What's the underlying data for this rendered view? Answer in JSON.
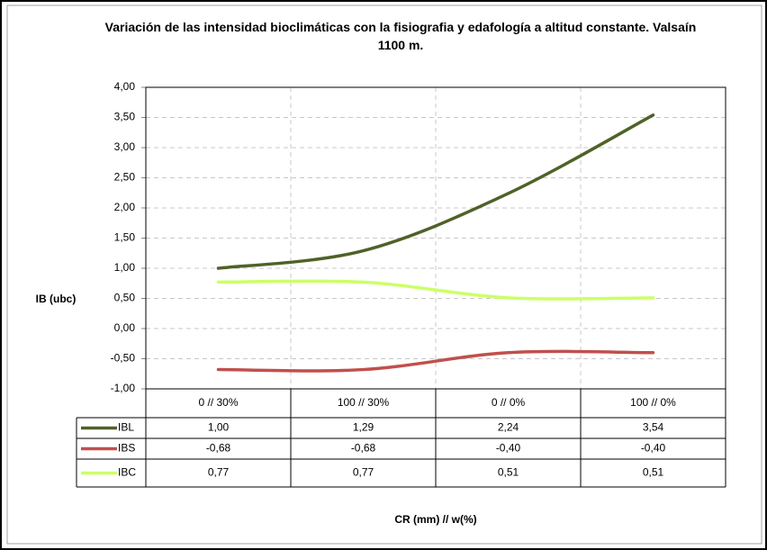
{
  "chart_data": {
    "type": "line",
    "title": "Variación de las intensidad bioclimáticas con la fisiografia y edafología a altitud constante. Valsaín 1100 m.",
    "y_label": "IB (ubc)",
    "x_label": "CR (mm) // w(%)",
    "categories": [
      "0 // 30%",
      "100 // 30%",
      "0 // 0%",
      "100 // 0%"
    ],
    "series": [
      {
        "name": "IBL",
        "color": "#4f6228",
        "values": [
          1.0,
          1.29,
          2.24,
          3.54
        ],
        "value_labels": [
          "1,00",
          "1,29",
          "2,24",
          "3,54"
        ]
      },
      {
        "name": "IBS",
        "color": "#c0504d",
        "values": [
          -0.68,
          -0.68,
          -0.4,
          -0.4
        ],
        "value_labels": [
          "-0,68",
          "-0,68",
          "-0,40",
          "-0,40"
        ]
      },
      {
        "name": "IBC",
        "color": "#ccff66",
        "values": [
          0.77,
          0.77,
          0.51,
          0.51
        ],
        "value_labels": [
          "0,77",
          "0,77",
          "0,51",
          "0,51"
        ]
      }
    ],
    "ylim": [
      -1,
      4
    ],
    "yticks": [
      {
        "value": -1,
        "label": "-1,00"
      },
      {
        "value": -0.5,
        "label": "-0,50"
      },
      {
        "value": 0,
        "label": "0,00"
      },
      {
        "value": 0.5,
        "label": "0,50"
      },
      {
        "value": 1,
        "label": "1,00"
      },
      {
        "value": 1.5,
        "label": "1,50"
      },
      {
        "value": 2,
        "label": "2,00"
      },
      {
        "value": 2.5,
        "label": "2,50"
      },
      {
        "value": 3,
        "label": "3,00"
      },
      {
        "value": 3.5,
        "label": "3,50"
      },
      {
        "value": 4,
        "label": "4,00"
      }
    ],
    "grid": true,
    "smooth": true
  }
}
